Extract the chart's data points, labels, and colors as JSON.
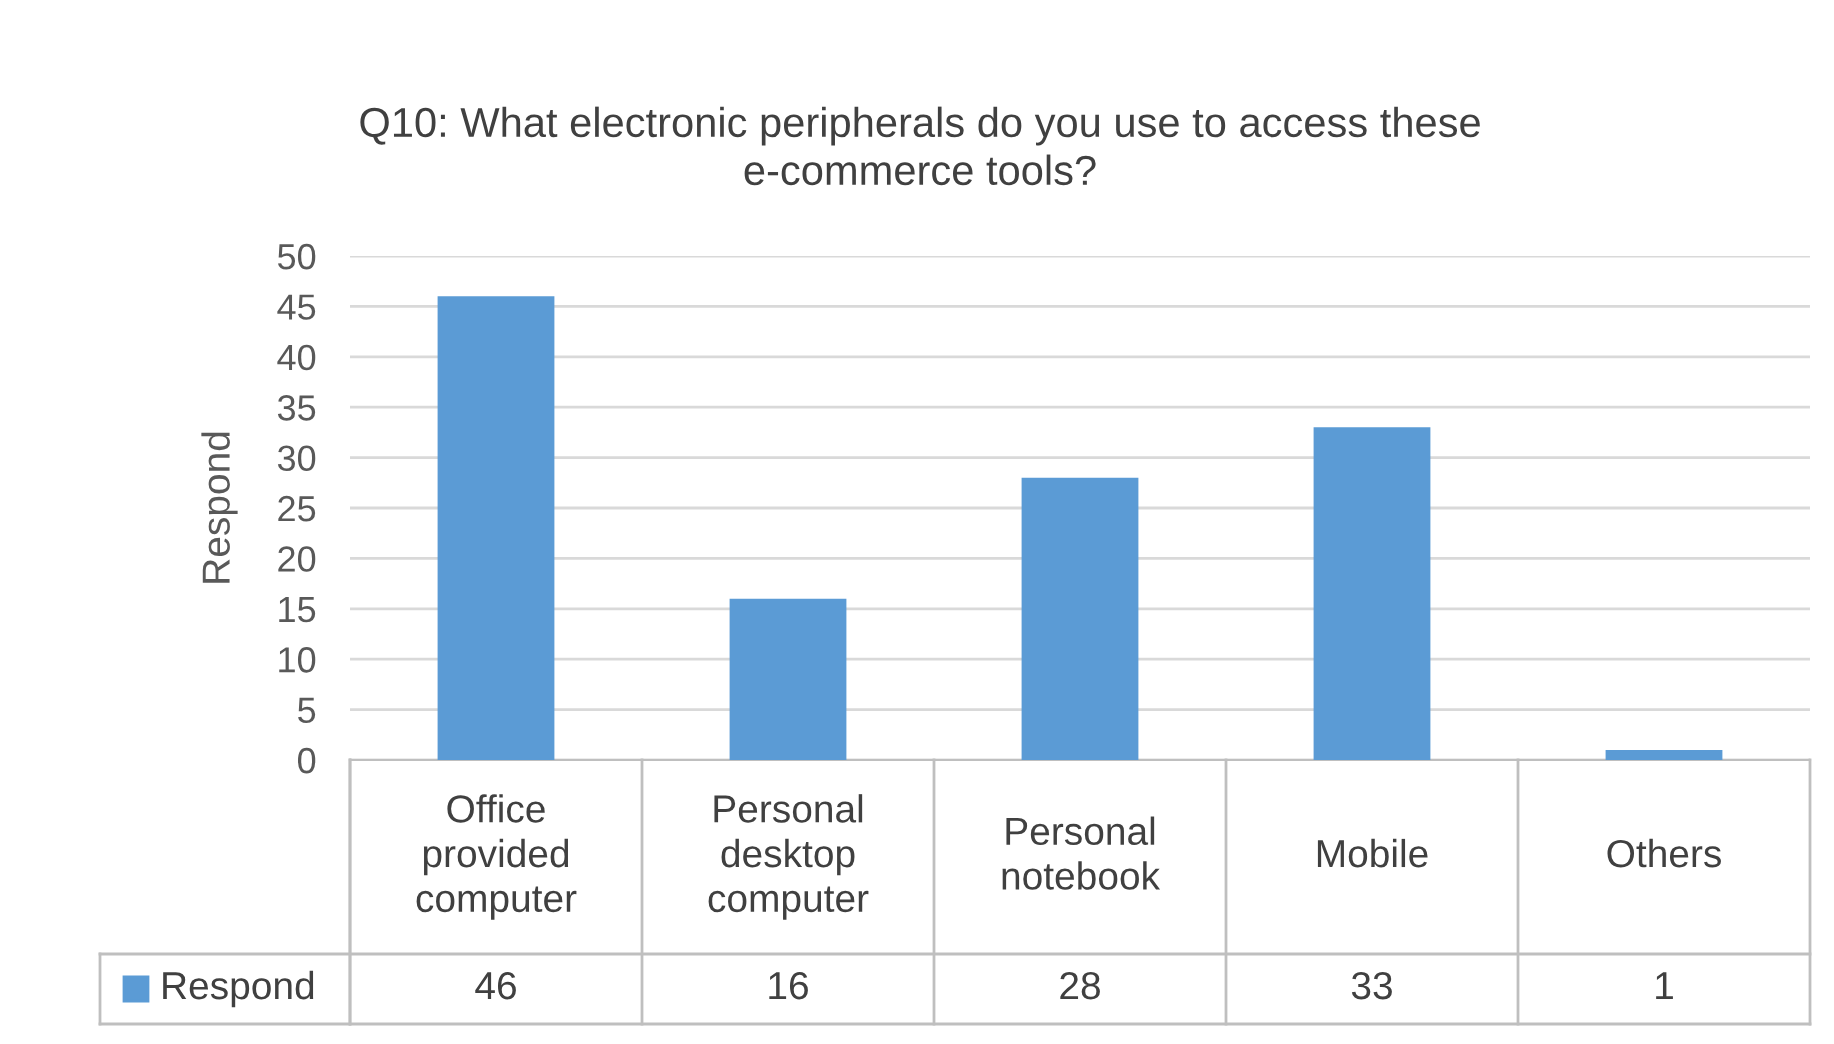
{
  "chart_data": {
    "type": "bar",
    "title": "Q10: What electronic peripherals do you use to access these e-commerce tools?",
    "ylabel": "Respond",
    "categories": [
      "Office provided computer",
      "Personal desktop computer",
      "Personal notebook",
      "Mobile",
      "Others"
    ],
    "series": [
      {
        "name": "Respond",
        "color": "#5b9bd5",
        "values": [
          46,
          16,
          28,
          33,
          1
        ]
      }
    ],
    "ylim": [
      0,
      50
    ],
    "yticks": [
      0,
      5,
      10,
      15,
      20,
      25,
      30,
      35,
      40,
      45,
      50
    ],
    "grid": "y",
    "data_labels": true,
    "legend": "bottom"
  }
}
